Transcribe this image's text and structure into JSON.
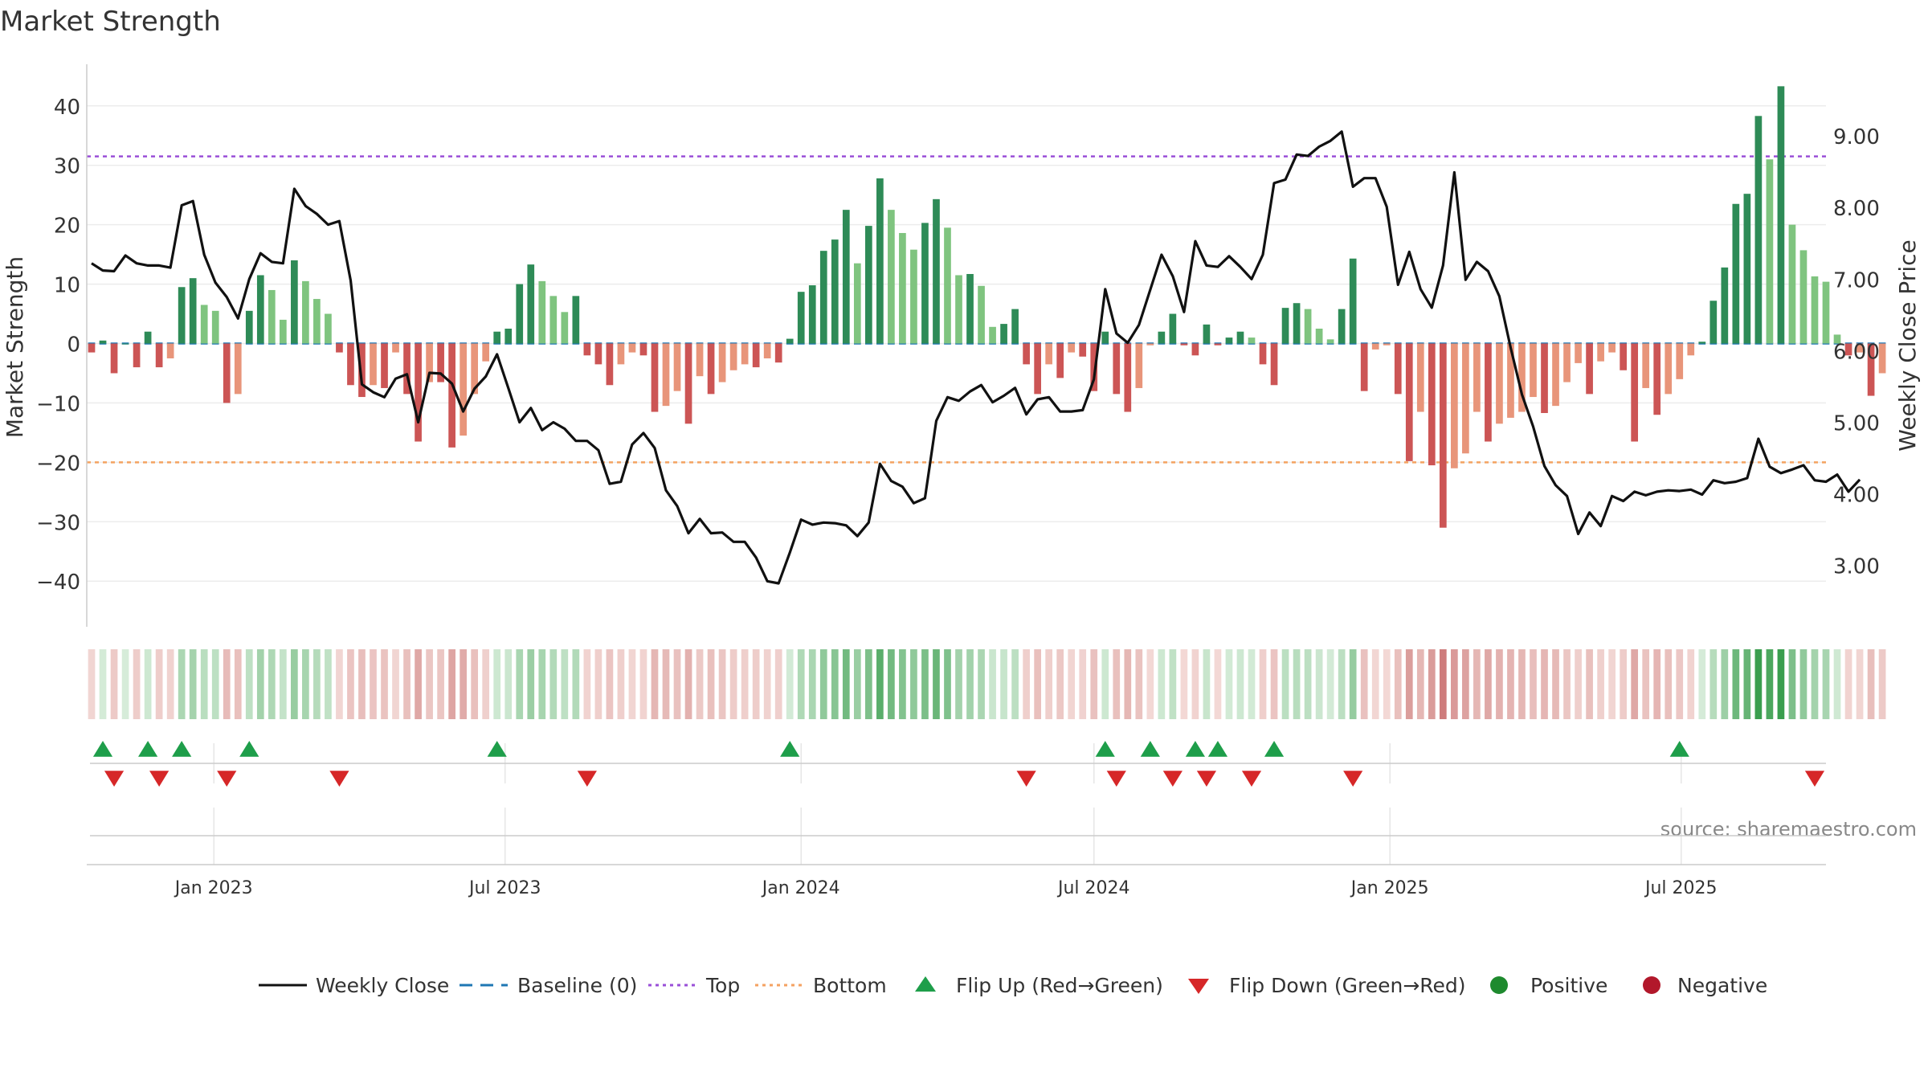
{
  "chart_data": {
    "type": "bar",
    "title": "Market Strength",
    "ylabel": "Market Strength",
    "y2label": "Weekly Close Price",
    "ylim": [
      -47,
      47
    ],
    "y2lim": [
      2.2,
      10.0
    ],
    "yticks": [
      40,
      30,
      20,
      10,
      0,
      -10,
      -20,
      -30,
      -40
    ],
    "yticklabels": [
      "40",
      "30",
      "20",
      "10",
      "0",
      "−10",
      "−20",
      "−30",
      "−40"
    ],
    "y2ticks": [
      9.0,
      8.0,
      7.0,
      6.0,
      5.0,
      4.0,
      3.0
    ],
    "y2ticklabels": [
      "9.00",
      "8.00",
      "7.00",
      "6.00",
      "5.00",
      "4.00",
      "3.00"
    ],
    "xlim": [
      "2022-10-14",
      "2025-09-29"
    ],
    "xticks": [
      "2023-01-01",
      "2023-07-01",
      "2024-01-01",
      "2024-07-01",
      "2025-01-01",
      "2025-07-01"
    ],
    "xticklabels": [
      "Jan 2023",
      "Jul 2023",
      "Jan 2024",
      "Jul 2024",
      "Jan 2025",
      "Jul 2025"
    ],
    "reference_lines": {
      "top": 31.5,
      "bottom": -20,
      "baseline": 0
    },
    "grid": true,
    "legend_position": "bottom-center",
    "colors": {
      "strong_positive": "#2e8b57",
      "weak_positive": "#7fc47f",
      "strong_negative": "#cc5555",
      "weak_negative": "#e8957a",
      "close_line": "#111111",
      "baseline": "#1f77b4",
      "top_line": "#9a4fd8",
      "bottom_line": "#f4a261",
      "flip_up": "#1e9e4a",
      "flip_down": "#d62728",
      "positive_dot": "#1e8a2e",
      "negative_dot": "#b2182b"
    },
    "week_start": "2022-10-17",
    "week_step_days": 7,
    "series": [
      {
        "name": "Market Strength",
        "kind": "bar",
        "values": [
          -1.5,
          0.5,
          -5,
          0,
          -4,
          2,
          -4,
          -2.5,
          9.5,
          11,
          6.5,
          5.5,
          -10,
          -8.5,
          5.5,
          11.5,
          9,
          4,
          14,
          10.5,
          7.5,
          5,
          -1.5,
          -7,
          -9,
          -7,
          -7.5,
          -1.5,
          -8.5,
          -16.5,
          -6.5,
          -6.5,
          -17.5,
          -15.5,
          -8.5,
          -3,
          2,
          2.5,
          10,
          13.3,
          10.5,
          8,
          5.3,
          8,
          -2,
          -3.5,
          -7,
          -3.5,
          -1.5,
          -2,
          -11.5,
          -10.5,
          -8,
          -13.5,
          -5.5,
          -8.5,
          -6.5,
          -4.5,
          -3.5,
          -4,
          -2.5,
          -3.2,
          0.8,
          8.7,
          9.8,
          15.6,
          17.5,
          22.5,
          13.5,
          19.8,
          27.8,
          22.5,
          18.6,
          15.8,
          20.3,
          24.3,
          19.5,
          11.5,
          11.7,
          9.7,
          2.8,
          3.3,
          5.8,
          -3.5,
          -8.5,
          -3.5,
          -5.8,
          -1.5,
          -2.2,
          -8,
          2,
          -8.5,
          -11.5,
          -7.5,
          -0.3,
          2,
          5,
          -0.3,
          -2,
          3.2,
          -0.3,
          1,
          2,
          1,
          -3.5,
          -7,
          6,
          6.8,
          5.8,
          2.5,
          0.7,
          5.8,
          14.3,
          -8,
          -1,
          -0.3,
          -8.5,
          -19.8,
          -11.5,
          -20.5,
          -31,
          -21,
          -18.5,
          -11.5,
          -16.5,
          -13.5,
          -12.5,
          -11.5,
          -9,
          -11.7,
          -10.5,
          -6.5,
          -3.3,
          -8.5,
          -3,
          -1.5,
          -4.5,
          -16.5,
          -7.5,
          -12,
          -8.5,
          -6,
          -2,
          0.3,
          7.2,
          12.8,
          23.5,
          25.2,
          38.3,
          31,
          43.3,
          20,
          15.7,
          11.3,
          10.4,
          1.5,
          -2,
          -1.5,
          -8.8,
          -5
        ]
      },
      {
        "name": "Weekly Close",
        "kind": "line",
        "values": [
          7.22,
          7.12,
          7.11,
          7.33,
          7.22,
          7.19,
          7.19,
          7.16,
          8.03,
          8.09,
          7.34,
          6.95,
          6.75,
          6.45,
          7.0,
          7.36,
          7.24,
          7.22,
          8.26,
          8.02,
          7.91,
          7.76,
          7.81,
          6.98,
          5.53,
          5.42,
          5.35,
          5.61,
          5.67,
          5.0,
          5.69,
          5.68,
          5.54,
          5.15,
          5.47,
          5.64,
          5.95,
          5.48,
          5.0,
          5.2,
          4.89,
          5.0,
          4.91,
          4.74,
          4.74,
          4.61,
          4.14,
          4.17,
          4.69,
          4.85,
          4.64,
          4.05,
          3.83,
          3.45,
          3.65,
          3.45,
          3.46,
          3.33,
          3.33,
          3.11,
          2.78,
          2.75,
          3.18,
          3.64,
          3.57,
          3.6,
          3.59,
          3.56,
          3.41,
          3.6,
          4.42,
          4.18,
          4.1,
          3.87,
          3.94,
          5.02,
          5.35,
          5.3,
          5.43,
          5.52,
          5.28,
          5.37,
          5.48,
          5.11,
          5.32,
          5.35,
          5.15,
          5.15,
          5.17,
          5.6,
          6.86,
          6.24,
          6.11,
          6.36,
          6.85,
          7.34,
          7.04,
          6.54,
          7.53,
          7.19,
          7.17,
          7.32,
          7.17,
          7.0,
          7.34,
          8.34,
          8.39,
          8.74,
          8.72,
          8.85,
          8.93,
          9.06,
          8.29,
          8.41,
          8.41,
          8.01,
          6.92,
          7.38,
          6.86,
          6.6,
          7.19,
          8.49,
          6.99,
          7.24,
          7.11,
          6.76,
          6.04,
          5.39,
          4.94,
          4.39,
          4.12,
          3.97,
          3.44,
          3.74,
          3.55,
          3.97,
          3.9,
          4.03,
          3.98,
          4.03,
          4.05,
          4.04,
          4.06,
          3.99,
          4.19,
          4.15,
          4.17,
          4.22,
          4.77,
          4.38,
          4.29,
          4.34,
          4.4,
          4.19,
          4.17,
          4.27,
          4.03,
          4.2
        ]
      }
    ],
    "flip_up_weeks": [
      1,
      5,
      8,
      14,
      36,
      62,
      90,
      94,
      98,
      100,
      105,
      141
    ],
    "flip_down_weeks": [
      2,
      6,
      12,
      22,
      44,
      83,
      91,
      96,
      99,
      103,
      112,
      153
    ],
    "heat_strip": "weekly strength colour band",
    "annotation": "source: sharemaestro.com",
    "legend": [
      {
        "label": "Weekly Close",
        "marker": "solid-line"
      },
      {
        "label": "Baseline (0)",
        "marker": "dashed-line"
      },
      {
        "label": "Top",
        "marker": "dotted-line-purple"
      },
      {
        "label": "Bottom",
        "marker": "dotted-line-orange"
      },
      {
        "label": "Flip Up (Red→Green)",
        "marker": "triangle-up"
      },
      {
        "label": "Flip Down (Green→Red)",
        "marker": "triangle-down"
      },
      {
        "label": "Positive",
        "marker": "circle-green"
      },
      {
        "label": "Negative",
        "marker": "circle-red"
      }
    ]
  }
}
